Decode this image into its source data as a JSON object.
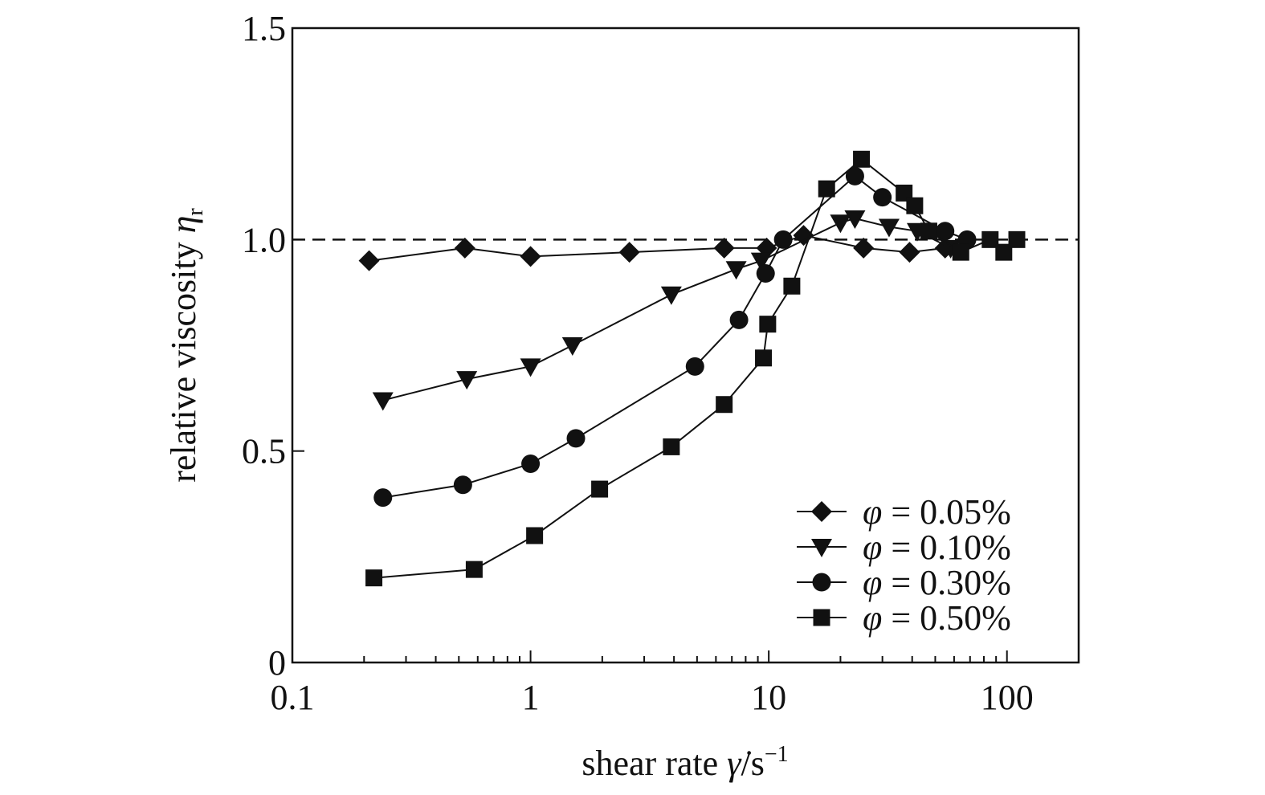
{
  "chart_data": {
    "type": "line",
    "x_scale": "log",
    "xlim": [
      0.1,
      200
    ],
    "ylim": [
      0,
      1.5
    ],
    "grid": false,
    "reference_line": {
      "y": 1.0,
      "style": "dashed"
    },
    "x_ticks": [
      {
        "value": 0.1,
        "label": "0.1"
      },
      {
        "value": 1,
        "label": "1"
      },
      {
        "value": 10,
        "label": "10"
      },
      {
        "value": 100,
        "label": "100"
      }
    ],
    "y_ticks": [
      {
        "value": 0,
        "label": "0"
      },
      {
        "value": 0.5,
        "label": "0.5"
      },
      {
        "value": 1.0,
        "label": "1.0"
      },
      {
        "value": 1.5,
        "label": "1.5"
      }
    ],
    "xlabel": {
      "main": "shear rate ",
      "symbol": "γ̇",
      "unit": "/s",
      "sup": "−1"
    },
    "ylabel": {
      "main": "relative viscosity ",
      "symbol": "η",
      "sub": "r"
    },
    "legend": {
      "placement": "bottom-right"
    },
    "series": [
      {
        "name": "φ = 0.05%",
        "name_symbol": "φ",
        "name_rest": " = 0.05%",
        "marker": "diamond",
        "x": [
          0.21,
          0.53,
          1.0,
          2.6,
          6.5,
          9.8,
          14.0,
          25.0,
          39.0,
          55.0
        ],
        "y": [
          0.95,
          0.98,
          0.96,
          0.97,
          0.98,
          0.98,
          1.01,
          0.98,
          0.97,
          0.98
        ]
      },
      {
        "name": "φ = 0.10%",
        "name_symbol": "φ",
        "name_rest": " = 0.10%",
        "marker": "triangle-down",
        "x": [
          0.24,
          0.54,
          1.0,
          1.5,
          3.9,
          7.3,
          9.3,
          20.0,
          23.0,
          32.0,
          42.0,
          58.0
        ],
        "y": [
          0.62,
          0.67,
          0.7,
          0.75,
          0.87,
          0.93,
          0.95,
          1.04,
          1.05,
          1.03,
          1.02,
          0.98
        ]
      },
      {
        "name": "φ = 0.30%",
        "name_symbol": "φ",
        "name_rest": " = 0.30%",
        "marker": "circle",
        "x": [
          0.24,
          0.52,
          1.0,
          1.55,
          4.9,
          7.5,
          9.7,
          11.5,
          23.0,
          30.0,
          55.0,
          68.0
        ],
        "y": [
          0.39,
          0.42,
          0.47,
          0.53,
          0.7,
          0.81,
          0.92,
          1.0,
          1.15,
          1.1,
          1.02,
          1.0
        ]
      },
      {
        "name": "φ = 0.50%",
        "name_symbol": "φ",
        "name_rest": " = 0.50%",
        "marker": "square",
        "x": [
          0.22,
          0.58,
          1.04,
          1.95,
          3.9,
          6.5,
          9.5,
          9.9,
          12.5,
          17.5,
          24.5,
          37.0,
          41.0,
          47.0,
          64.0,
          85.0,
          97.0,
          110.0
        ],
        "y": [
          0.2,
          0.22,
          0.3,
          0.41,
          0.51,
          0.61,
          0.72,
          0.8,
          0.89,
          1.12,
          1.19,
          1.11,
          1.08,
          1.02,
          0.97,
          1.0,
          0.97,
          1.0
        ]
      }
    ]
  }
}
